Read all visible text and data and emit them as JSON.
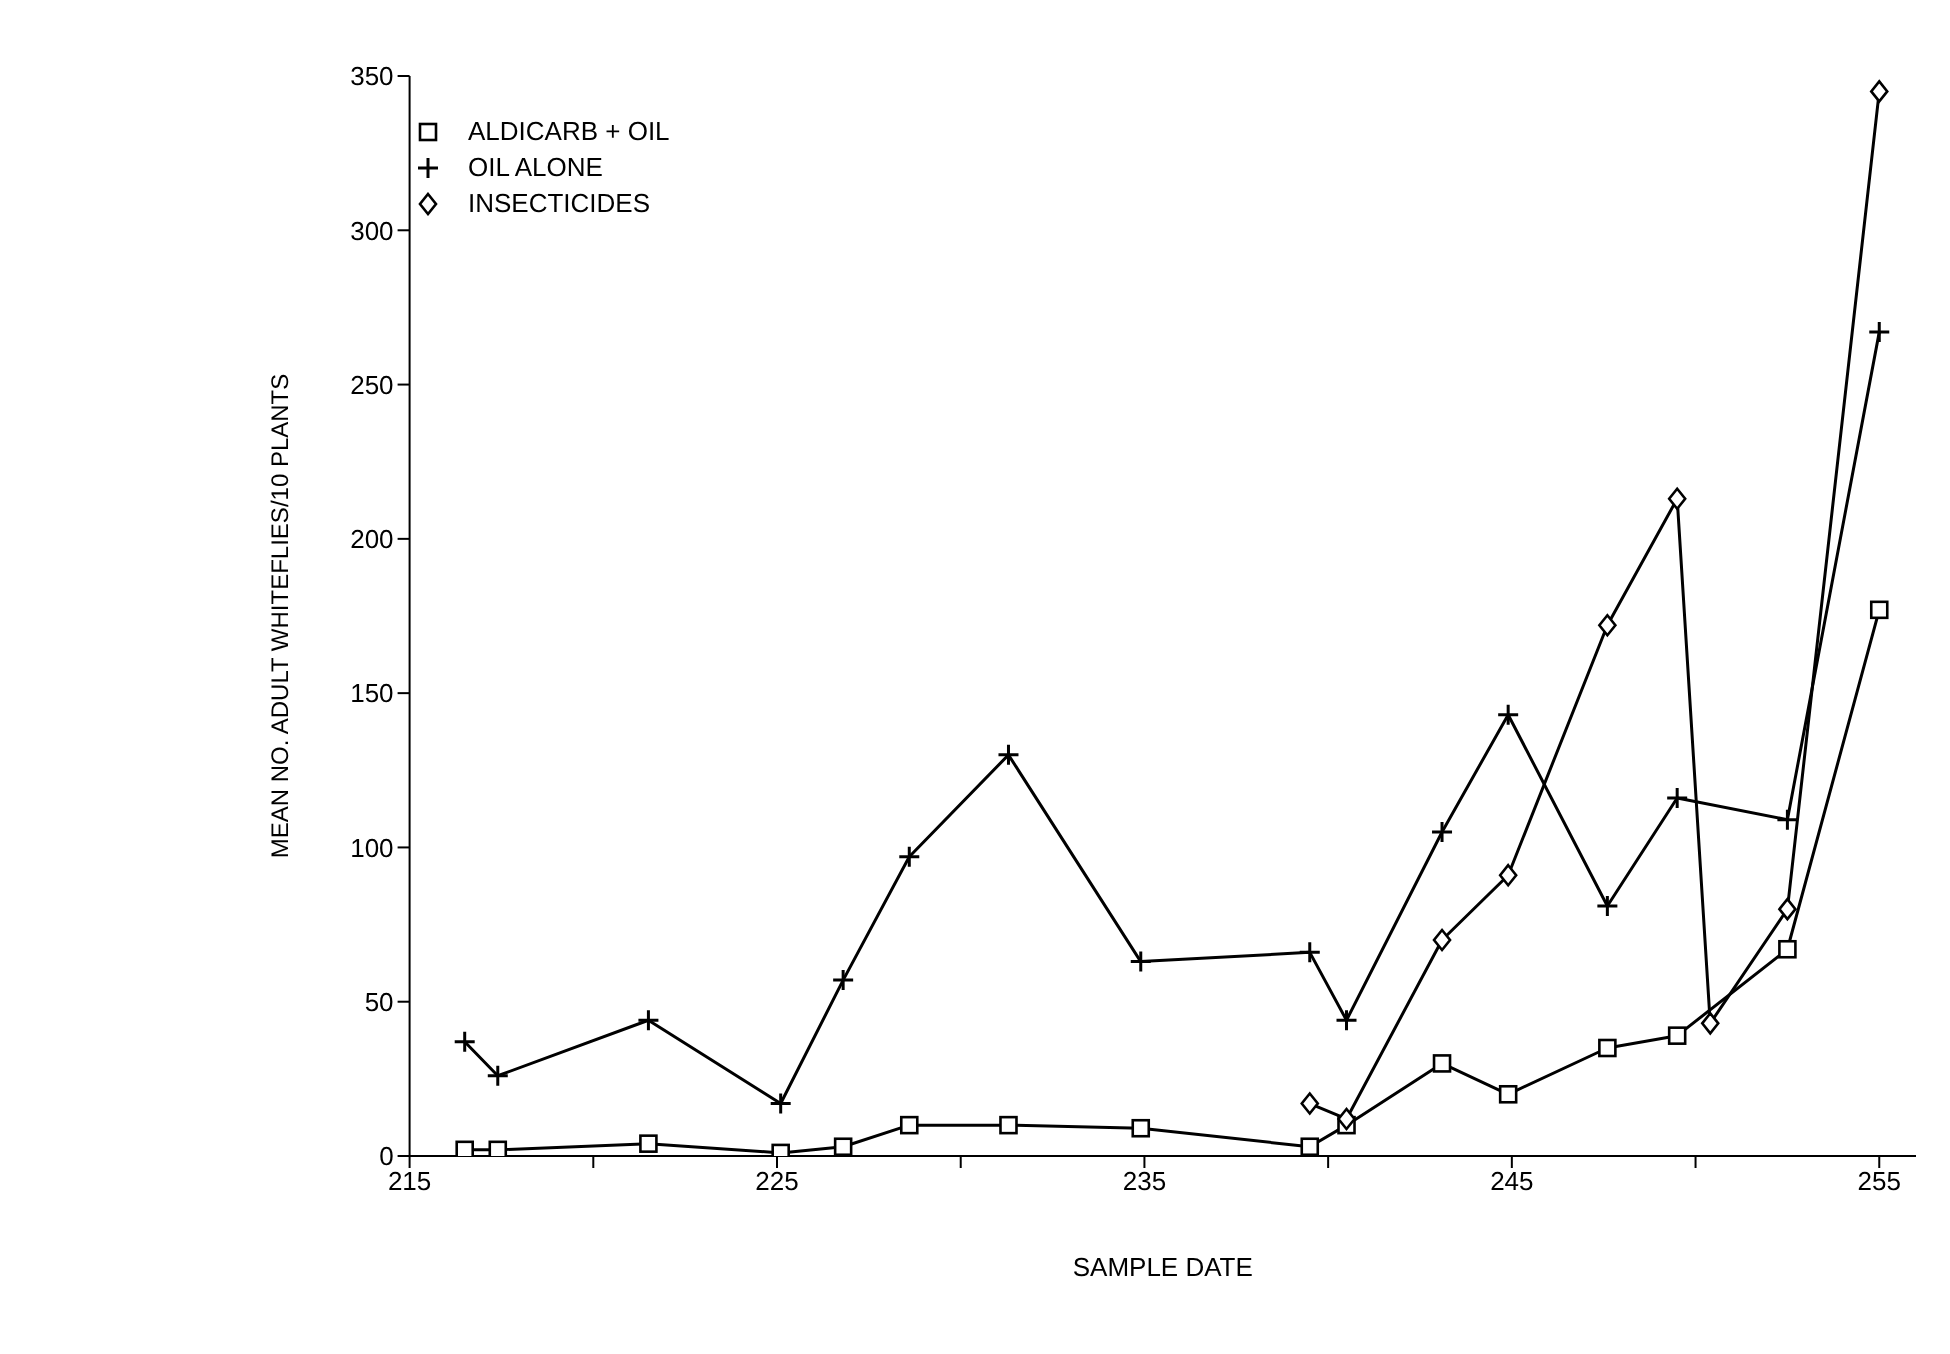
{
  "chart_data": {
    "type": "line",
    "xlabel": "SAMPLE DATE",
    "ylabel": "MEAN NO. ADULT WHITEFLIES/10 PLANTS",
    "xlim": [
      215,
      256
    ],
    "xticks": [
      215,
      {
        "value": 220,
        "label": null
      },
      225,
      {
        "value": 230,
        "label": null
      },
      235,
      {
        "value": 240,
        "label": null
      },
      245,
      {
        "value": 250,
        "label": null
      },
      255
    ],
    "ylim": [
      0,
      350
    ],
    "yticks": [
      0,
      50,
      100,
      150,
      200,
      250,
      300,
      350
    ],
    "grid": false,
    "legend": "top left",
    "line_style": "solid",
    "series": [
      {
        "name": "ALDICARB + OIL",
        "color": "#000000",
        "marker": "square",
        "x": [
          216.5,
          217.4,
          221.5,
          225.1,
          226.8,
          228.6,
          231.3,
          234.9,
          239.5,
          240.5,
          243.1,
          244.9,
          247.6,
          249.5,
          252.5,
          255.0
        ],
        "values": [
          2,
          2,
          4,
          1,
          3,
          10,
          10,
          9,
          3,
          10,
          30,
          20,
          35,
          39,
          67,
          177
        ]
      },
      {
        "name": "OIL ALONE",
        "color": "#000000",
        "marker": "cross",
        "x": [
          216.5,
          217.4,
          221.5,
          225.1,
          226.8,
          228.6,
          231.3,
          234.9,
          239.5,
          240.5,
          243.1,
          244.9,
          247.6,
          249.5,
          252.5,
          255.0
        ],
        "values": [
          37,
          26,
          44,
          17,
          57,
          97,
          130,
          63,
          66,
          44,
          105,
          143,
          81,
          116,
          109,
          267
        ]
      },
      {
        "name": "INSECTICIDES",
        "color": "#000000",
        "marker": "diamond",
        "x": [
          239.5,
          240.5,
          243.1,
          244.9,
          247.6,
          249.5,
          250.4,
          252.5,
          255.0
        ],
        "values": [
          17,
          12,
          70,
          91,
          172,
          213,
          43,
          80,
          345
        ]
      }
    ]
  }
}
